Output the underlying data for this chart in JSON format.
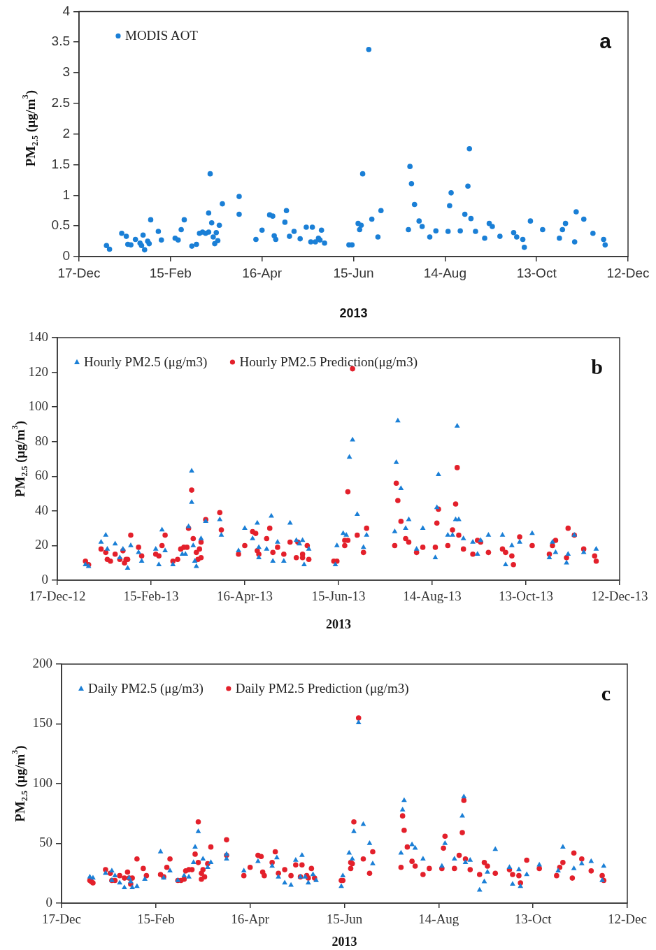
{
  "chart_data": [
    {
      "type": "scatter",
      "xlabel": "2013",
      "ylabel": "PM$_{2.5}$ (μg/m$^{3}$)",
      "annotations": [
        "a"
      ],
      "legend": "top left",
      "marker": "circle",
      "xlim": [
        "2012-12-17",
        "2013-12-12"
      ],
      "xticks": [
        {
          "value": "2012-12-17",
          "label": "17-Dec"
        },
        {
          "value": "2013-02-15",
          "label": "15-Feb"
        },
        {
          "value": "2013-04-16",
          "label": "16-Apr"
        },
        {
          "value": "2013-06-15",
          "label": "15-Jun"
        },
        {
          "value": "2013-08-14",
          "label": "14-Aug"
        },
        {
          "value": "2013-10-13",
          "label": "13-Oct"
        },
        {
          "value": "2013-12-12",
          "label": "12-Dec"
        }
      ],
      "ylim": [
        0,
        4
      ],
      "yticks": [
        0,
        0.5,
        1,
        1.5,
        2,
        2.5,
        3,
        3.5,
        4
      ],
      "series": [
        {
          "name": "MODIS AOT",
          "color": "#1a7fd6",
          "x": [
            "2013-01-04",
            "2013-01-06",
            "2013-01-14",
            "2013-01-17",
            "2013-01-18",
            "2013-01-20",
            "2013-01-23",
            "2013-01-26",
            "2013-01-27",
            "2013-01-28",
            "2013-01-29",
            "2013-01-31",
            "2013-02-01",
            "2013-02-02",
            "2013-02-07",
            "2013-02-09",
            "2013-02-18",
            "2013-02-20",
            "2013-02-22",
            "2013-02-24",
            "2013-03-01",
            "2013-03-04",
            "2013-03-06",
            "2013-03-08",
            "2013-03-10",
            "2013-03-12",
            "2013-03-13",
            "2013-03-12",
            "2013-03-14",
            "2013-03-15",
            "2013-03-16",
            "2013-03-17",
            "2013-03-18",
            "2013-03-19",
            "2013-03-21",
            "2013-04-01",
            "2013-04-01",
            "2013-04-12",
            "2013-04-16",
            "2013-04-21",
            "2013-04-23",
            "2013-04-24",
            "2013-04-25",
            "2013-05-01",
            "2013-05-02",
            "2013-05-04",
            "2013-05-07",
            "2013-05-11",
            "2013-05-15",
            "2013-05-18",
            "2013-05-19",
            "2013-05-21",
            "2013-05-23",
            "2013-05-24",
            "2013-05-25",
            "2013-05-27",
            "2013-06-12",
            "2013-06-14",
            "2013-06-18",
            "2013-06-19",
            "2013-06-20",
            "2013-06-21",
            "2013-06-25",
            "2013-06-27",
            "2013-07-01",
            "2013-07-03",
            "2013-07-21",
            "2013-07-22",
            "2013-07-23",
            "2013-07-25",
            "2013-07-28",
            "2013-07-30",
            "2013-08-04",
            "2013-08-08",
            "2013-08-16",
            "2013-08-17",
            "2013-08-18",
            "2013-08-24",
            "2013-08-27",
            "2013-08-29",
            "2013-08-30",
            "2013-08-31",
            "2013-09-03",
            "2013-09-09",
            "2013-09-12",
            "2013-09-14",
            "2013-09-19",
            "2013-09-28",
            "2013-09-30",
            "2013-10-04",
            "2013-10-05",
            "2013-10-09",
            "2013-10-17",
            "2013-10-28",
            "2013-10-30",
            "2013-11-01",
            "2013-11-07",
            "2013-11-08",
            "2013-11-13",
            "2013-11-19",
            "2013-11-26",
            "2013-11-27"
          ],
          "values": [
            0.18,
            0.12,
            0.38,
            0.33,
            0.2,
            0.19,
            0.28,
            0.22,
            0.18,
            0.35,
            0.11,
            0.25,
            0.21,
            0.6,
            0.41,
            0.27,
            0.3,
            0.27,
            0.44,
            0.6,
            0.17,
            0.2,
            0.38,
            0.4,
            0.38,
            0.4,
            1.35,
            0.71,
            0.55,
            0.32,
            0.21,
            0.39,
            0.26,
            0.51,
            0.86,
            0.98,
            0.69,
            0.28,
            0.43,
            0.68,
            0.66,
            0.34,
            0.28,
            0.56,
            0.75,
            0.33,
            0.41,
            0.29,
            0.48,
            0.24,
            0.48,
            0.24,
            0.3,
            0.27,
            0.43,
            0.22,
            0.19,
            0.19,
            0.54,
            0.44,
            0.51,
            1.35,
            3.38,
            0.61,
            0.32,
            0.75,
            0.44,
            1.47,
            1.19,
            0.85,
            0.58,
            0.49,
            0.32,
            0.42,
            0.41,
            0.83,
            1.04,
            0.42,
            0.69,
            1.15,
            1.76,
            0.62,
            0.41,
            0.3,
            0.54,
            0.49,
            0.33,
            0.39,
            0.32,
            0.28,
            0.15,
            0.58,
            0.44,
            0.3,
            0.44,
            0.54,
            0.24,
            0.73,
            0.61,
            0.38,
            0.28,
            0.19
          ]
        }
      ]
    },
    {
      "type": "scatter",
      "xlabel": "2013",
      "ylabel": "PM$_{2.5}$ (μg/m$^{3}$)",
      "annotations": [
        "b"
      ],
      "legend": "top left",
      "xlim": [
        "2012-12-17",
        "2013-12-12"
      ],
      "xticks": [
        {
          "value": "2012-12-17",
          "label": "17-Dec-12"
        },
        {
          "value": "2013-02-15",
          "label": "15-Feb-13"
        },
        {
          "value": "2013-04-16",
          "label": "16-Apr-13"
        },
        {
          "value": "2013-06-15",
          "label": "15-Jun-13"
        },
        {
          "value": "2013-08-14",
          "label": "14-Aug-13"
        },
        {
          "value": "2013-10-13",
          "label": "13-Oct-13"
        },
        {
          "value": "2013-12-12",
          "label": "12-Dec-13"
        }
      ],
      "ylim": [
        0,
        140
      ],
      "yticks": [
        0,
        20,
        40,
        60,
        80,
        100,
        120,
        140
      ],
      "series": [
        {
          "name": "Hourly PM2.5 (μg/m3)",
          "color": "#1a7fd6",
          "marker": "triangle",
          "x": [
            "2013-01-04",
            "2013-01-06",
            "2013-01-14",
            "2013-01-17",
            "2013-01-18",
            "2013-01-23",
            "2013-01-26",
            "2013-01-28",
            "2013-01-31",
            "2013-02-02",
            "2013-02-07",
            "2013-02-09",
            "2013-02-18",
            "2013-02-20",
            "2013-02-22",
            "2013-02-24",
            "2013-03-01",
            "2013-03-07",
            "2013-03-09",
            "2013-03-11",
            "2013-03-13",
            "2013-03-13",
            "2013-03-14",
            "2013-03-15",
            "2013-03-16",
            "2013-03-19",
            "2013-03-22",
            "2013-03-31",
            "2013-04-01",
            "2013-04-12",
            "2013-04-16",
            "2013-04-21",
            "2013-04-24",
            "2013-04-25",
            "2013-04-25",
            "2013-04-30",
            "2013-05-03",
            "2013-05-04",
            "2013-05-07",
            "2013-05-11",
            "2013-05-15",
            "2013-05-19",
            "2013-05-21",
            "2013-05-23",
            "2013-05-24",
            "2013-05-27",
            "2013-06-13",
            "2013-06-14",
            "2013-06-18",
            "2013-06-20",
            "2013-06-22",
            "2013-06-24",
            "2013-06-27",
            "2013-07-01",
            "2013-07-03",
            "2013-07-21",
            "2013-07-22",
            "2013-07-23",
            "2013-07-25",
            "2013-07-28",
            "2013-07-30",
            "2013-08-04",
            "2013-08-08",
            "2013-08-16",
            "2013-08-17",
            "2013-08-18",
            "2013-08-24",
            "2013-08-27",
            "2013-08-29",
            "2013-08-30",
            "2013-08-31",
            "2013-09-03",
            "2013-09-09",
            "2013-09-12",
            "2013-09-14",
            "2013-09-19",
            "2013-09-28",
            "2013-09-30",
            "2013-10-04",
            "2013-10-09",
            "2013-10-17",
            "2013-10-28",
            "2013-10-30",
            "2013-11-01",
            "2013-11-08",
            "2013-11-09",
            "2013-11-13",
            "2013-11-19",
            "2013-11-27"
          ],
          "values": [
            9,
            8,
            22,
            26,
            18,
            21,
            13,
            18,
            7,
            20,
            16,
            11,
            18,
            9,
            29,
            17,
            9,
            15,
            15,
            31,
            45,
            63,
            20,
            11,
            8,
            24,
            34,
            35,
            26,
            17,
            30,
            24,
            33,
            19,
            13,
            18,
            37,
            11,
            22,
            11,
            33,
            23,
            21,
            23,
            9,
            18,
            9,
            20,
            27,
            26,
            71,
            81,
            38,
            19,
            26,
            28,
            68,
            92,
            53,
            30,
            35,
            18,
            30,
            13,
            42,
            61,
            26,
            26,
            35,
            89,
            35,
            24,
            22,
            15,
            23,
            26,
            26,
            9,
            20,
            22,
            27,
            13,
            22,
            16,
            10,
            15,
            26,
            16,
            18
          ]
        },
        {
          "name": "Hourly PM2.5 Prediction(μg/m3)",
          "color": "#e3202b",
          "marker": "circle",
          "x": [
            "2013-01-04",
            "2013-01-06",
            "2013-01-14",
            "2013-01-17",
            "2013-01-18",
            "2013-01-20",
            "2013-01-23",
            "2013-01-26",
            "2013-01-28",
            "2013-01-29",
            "2013-01-30",
            "2013-01-31",
            "2013-02-02",
            "2013-02-07",
            "2013-02-09",
            "2013-02-18",
            "2013-02-20",
            "2013-02-22",
            "2013-02-24",
            "2013-03-01",
            "2013-03-04",
            "2013-03-06",
            "2013-03-08",
            "2013-03-10",
            "2013-03-11",
            "2013-03-13",
            "2013-03-14",
            "2013-03-16",
            "2013-03-17",
            "2013-03-18",
            "2013-03-19",
            "2013-03-19",
            "2013-03-22",
            "2013-03-31",
            "2013-04-01",
            "2013-04-12",
            "2013-04-16",
            "2013-04-21",
            "2013-04-23",
            "2013-04-24",
            "2013-04-25",
            "2013-04-30",
            "2013-05-02",
            "2013-05-04",
            "2013-05-07",
            "2013-05-11",
            "2013-05-15",
            "2013-05-19",
            "2013-05-20",
            "2013-05-23",
            "2013-05-23",
            "2013-05-26",
            "2013-05-27",
            "2013-06-12",
            "2013-06-14",
            "2013-06-19",
            "2013-06-19",
            "2013-06-21",
            "2013-06-21",
            "2013-06-24",
            "2013-06-27",
            "2013-07-01",
            "2013-07-03",
            "2013-07-21",
            "2013-07-22",
            "2013-07-23",
            "2013-07-25",
            "2013-07-28",
            "2013-07-30",
            "2013-08-04",
            "2013-08-08",
            "2013-08-16",
            "2013-08-17",
            "2013-08-18",
            "2013-08-24",
            "2013-08-27",
            "2013-08-29",
            "2013-08-30",
            "2013-08-31",
            "2013-09-03",
            "2013-09-09",
            "2013-09-12",
            "2013-09-14",
            "2013-09-19",
            "2013-09-28",
            "2013-09-30",
            "2013-10-04",
            "2013-10-05",
            "2013-10-09",
            "2013-10-17",
            "2013-10-28",
            "2013-10-30",
            "2013-11-01",
            "2013-11-08",
            "2013-11-09",
            "2013-11-13",
            "2013-11-19",
            "2013-11-26",
            "2013-11-27"
          ],
          "values": [
            11,
            9,
            18,
            16,
            12,
            11,
            15,
            12,
            17,
            10,
            12,
            12,
            26,
            19,
            14,
            15,
            14,
            20,
            26,
            11,
            12,
            18,
            19,
            19,
            30,
            52,
            24,
            16,
            12,
            18,
            13,
            22,
            35,
            39,
            29,
            15,
            20,
            28,
            27,
            17,
            15,
            24,
            30,
            16,
            19,
            15,
            22,
            13,
            22,
            15,
            13,
            20,
            12,
            11,
            11,
            23,
            20,
            23,
            51,
            122,
            26,
            16,
            30,
            20,
            56,
            46,
            34,
            24,
            22,
            16,
            19,
            19,
            33,
            41,
            20,
            29,
            44,
            65,
            26,
            18,
            15,
            23,
            22,
            16,
            18,
            16,
            14,
            9,
            25,
            20,
            15,
            20,
            23,
            13,
            30,
            26,
            18,
            14,
            11
          ]
        }
      ]
    },
    {
      "type": "scatter",
      "xlabel": "2013",
      "ylabel": "PM$_{2.5}$ (μg/m$^{3}$)",
      "annotations": [
        "c"
      ],
      "legend": "top left",
      "xlim": [
        "2012-12-17",
        "2013-12-12"
      ],
      "xticks": [
        {
          "value": "2012-12-17",
          "label": "17-Dec"
        },
        {
          "value": "2013-02-15",
          "label": "15-Feb"
        },
        {
          "value": "2013-04-16",
          "label": "16-Apr"
        },
        {
          "value": "2013-06-15",
          "label": "15-Jun"
        },
        {
          "value": "2013-08-14",
          "label": "14-Aug"
        },
        {
          "value": "2013-10-13",
          "label": "13-Oct"
        },
        {
          "value": "2013-12-12",
          "label": "12-Dec"
        }
      ],
      "ylim": [
        0,
        200
      ],
      "yticks": [
        0,
        50,
        100,
        150,
        200
      ],
      "series": [
        {
          "name": "Daily PM2.5 (μg/m3)",
          "color": "#1a7fd6",
          "marker": "triangle",
          "x": [
            "2013-01-04",
            "2013-01-06",
            "2013-01-14",
            "2013-01-18",
            "2013-01-20",
            "2013-01-18",
            "2013-01-23",
            "2013-01-26",
            "2013-01-29",
            "2013-01-30",
            "2013-01-31",
            "2013-02-03",
            "2013-02-08",
            "2013-02-18",
            "2013-02-20",
            "2013-02-24",
            "2013-03-01",
            "2013-03-05",
            "2013-03-08",
            "2013-03-11",
            "2013-03-12",
            "2013-03-14",
            "2013-03-17",
            "2013-03-20",
            "2013-03-22",
            "2013-04-01",
            "2013-04-01",
            "2013-04-12",
            "2013-04-21",
            "2013-04-30",
            "2013-05-03",
            "2013-05-04",
            "2013-05-08",
            "2013-05-12",
            "2013-05-15",
            "2013-05-18",
            "2013-05-19",
            "2013-05-21",
            "2013-05-23",
            "2013-05-26",
            "2013-05-28",
            "2013-06-13",
            "2013-06-14",
            "2013-06-18",
            "2013-06-20",
            "2013-06-21",
            "2013-06-24",
            "2013-06-27",
            "2013-07-01",
            "2013-07-03",
            "2013-07-21",
            "2013-07-22",
            "2013-07-23",
            "2013-07-28",
            "2013-07-30",
            "2013-08-04",
            "2013-08-16",
            "2013-08-18",
            "2013-08-24",
            "2013-08-29",
            "2013-08-30",
            "2013-08-31",
            "2013-09-03",
            "2013-09-09",
            "2013-09-12",
            "2013-09-14",
            "2013-09-19",
            "2013-09-28",
            "2013-09-30",
            "2013-10-04",
            "2013-10-05",
            "2013-10-09",
            "2013-10-17",
            "2013-10-29",
            "2013-11-01",
            "2013-11-08",
            "2013-11-13",
            "2013-11-19",
            "2013-11-27",
            "2013-11-26"
          ],
          "values": [
            22,
            21,
            25,
            27,
            23,
            19,
            17,
            13,
            21,
            18,
            13,
            14,
            20,
            43,
            21,
            27,
            19,
            23,
            22,
            34,
            47,
            60,
            37,
            30,
            34,
            41,
            37,
            27,
            35,
            31,
            38,
            22,
            17,
            15,
            36,
            22,
            40,
            22,
            17,
            24,
            19,
            14,
            23,
            42,
            37,
            60,
            151,
            66,
            50,
            33,
            42,
            78,
            86,
            49,
            46,
            37,
            31,
            50,
            37,
            73,
            89,
            34,
            36,
            11,
            18,
            26,
            45,
            30,
            16,
            28,
            14,
            24,
            32,
            27,
            47,
            29,
            33,
            35,
            31,
            19
          ]
        },
        {
          "name": "Daily PM2.5 Prediction (μg/m3)",
          "color": "#e3202b",
          "marker": "circle",
          "x": [
            "2013-01-04",
            "2013-01-05",
            "2013-01-06",
            "2013-01-14",
            "2013-01-17",
            "2013-01-18",
            "2013-01-20",
            "2013-01-23",
            "2013-01-26",
            "2013-01-28",
            "2013-01-29",
            "2013-01-30",
            "2013-01-31",
            "2013-02-03",
            "2013-02-07",
            "2013-02-09",
            "2013-02-18",
            "2013-02-20",
            "2013-02-22",
            "2013-02-24",
            "2013-03-01",
            "2013-03-03",
            "2013-03-05",
            "2013-03-06",
            "2013-03-08",
            "2013-03-10",
            "2013-03-12",
            "2013-03-14",
            "2013-03-14",
            "2013-03-16",
            "2013-03-16",
            "2013-03-17",
            "2013-03-18",
            "2013-03-20",
            "2013-03-22",
            "2013-04-01",
            "2013-04-01",
            "2013-04-12",
            "2013-04-16",
            "2013-04-21",
            "2013-04-23",
            "2013-04-24",
            "2013-04-25",
            "2013-04-30",
            "2013-05-02",
            "2013-05-04",
            "2013-05-08",
            "2013-05-12",
            "2013-05-15",
            "2013-05-18",
            "2013-05-19",
            "2013-05-22",
            "2013-05-23",
            "2013-05-25",
            "2013-05-27",
            "2013-06-13",
            "2013-06-14",
            "2013-06-19",
            "2013-06-19",
            "2013-06-20",
            "2013-06-21",
            "2013-06-24",
            "2013-06-27",
            "2013-07-01",
            "2013-07-03",
            "2013-07-21",
            "2013-07-22",
            "2013-07-23",
            "2013-07-25",
            "2013-07-28",
            "2013-07-30",
            "2013-08-04",
            "2013-08-08",
            "2013-08-16",
            "2013-08-17",
            "2013-08-18",
            "2013-08-24",
            "2013-08-27",
            "2013-08-29",
            "2013-08-30",
            "2013-08-31",
            "2013-09-03",
            "2013-09-09",
            "2013-09-12",
            "2013-09-14",
            "2013-09-19",
            "2013-09-28",
            "2013-09-30",
            "2013-10-04",
            "2013-10-05",
            "2013-10-09",
            "2013-10-17",
            "2013-10-28",
            "2013-10-30",
            "2013-11-01",
            "2013-11-07",
            "2013-11-08",
            "2013-11-13",
            "2013-11-19",
            "2013-11-26",
            "2013-11-27"
          ],
          "values": [
            19,
            18,
            17,
            28,
            25,
            19,
            19,
            23,
            21,
            26,
            21,
            16,
            21,
            37,
            29,
            23,
            24,
            22,
            30,
            37,
            19,
            19,
            20,
            27,
            28,
            28,
            41,
            68,
            34,
            25,
            20,
            28,
            22,
            33,
            47,
            53,
            40,
            23,
            30,
            40,
            39,
            26,
            23,
            34,
            43,
            25,
            28,
            23,
            32,
            22,
            32,
            23,
            21,
            29,
            21,
            19,
            19,
            34,
            29,
            33,
            68,
            155,
            37,
            25,
            43,
            30,
            73,
            61,
            47,
            35,
            31,
            24,
            29,
            29,
            46,
            56,
            29,
            40,
            59,
            86,
            37,
            28,
            24,
            34,
            31,
            25,
            28,
            24,
            23,
            17,
            36,
            29,
            23,
            30,
            34,
            21,
            42,
            37,
            27,
            23,
            19
          ]
        }
      ]
    }
  ]
}
